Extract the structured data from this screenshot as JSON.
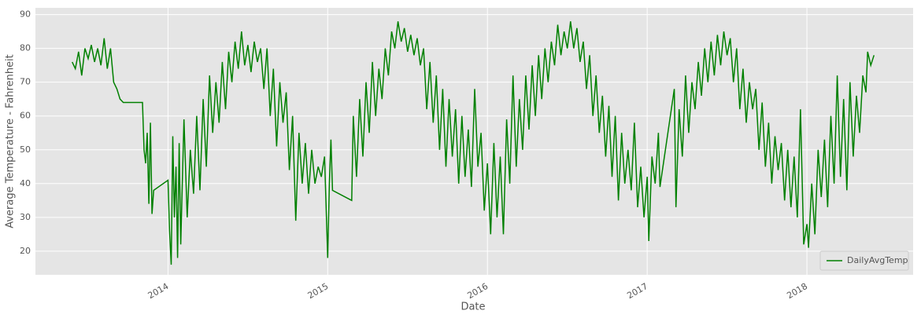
{
  "chart_data": {
    "type": "line",
    "x_label": "Date",
    "y_label": "Average Temperature - Fahrenheit",
    "x": [
      2013.4,
      2013.42,
      2013.44,
      2013.46,
      2013.48,
      2013.5,
      2013.52,
      2013.54,
      2013.56,
      2013.58,
      2013.6,
      2013.62,
      2013.64,
      2013.66,
      2013.68,
      2013.7,
      2013.72,
      2013.84,
      2013.85,
      2013.86,
      2013.87,
      2013.88,
      2013.89,
      2013.9,
      2013.91,
      2014.0,
      2014.01,
      2014.02,
      2014.03,
      2014.04,
      2014.05,
      2014.06,
      2014.07,
      2014.08,
      2014.1,
      2014.12,
      2014.14,
      2014.16,
      2014.18,
      2014.2,
      2014.22,
      2014.24,
      2014.26,
      2014.28,
      2014.3,
      2014.32,
      2014.34,
      2014.36,
      2014.38,
      2014.4,
      2014.42,
      2014.44,
      2014.46,
      2014.48,
      2014.5,
      2014.52,
      2014.54,
      2014.56,
      2014.58,
      2014.6,
      2014.62,
      2014.64,
      2014.66,
      2014.68,
      2014.7,
      2014.72,
      2014.74,
      2014.76,
      2014.78,
      2014.8,
      2014.82,
      2014.84,
      2014.86,
      2014.88,
      2014.9,
      2014.92,
      2014.94,
      2014.96,
      2014.98,
      2015.0,
      2015.01,
      2015.02,
      2015.03,
      2015.15,
      2015.16,
      2015.18,
      2015.2,
      2015.22,
      2015.24,
      2015.26,
      2015.28,
      2015.3,
      2015.32,
      2015.34,
      2015.36,
      2015.38,
      2015.4,
      2015.42,
      2015.44,
      2015.46,
      2015.48,
      2015.5,
      2015.52,
      2015.54,
      2015.56,
      2015.58,
      2015.6,
      2015.62,
      2015.64,
      2015.66,
      2015.68,
      2015.7,
      2015.72,
      2015.74,
      2015.76,
      2015.78,
      2015.8,
      2015.82,
      2015.84,
      2015.86,
      2015.88,
      2015.9,
      2015.92,
      2015.94,
      2015.96,
      2015.98,
      2016.0,
      2016.02,
      2016.04,
      2016.06,
      2016.08,
      2016.1,
      2016.12,
      2016.14,
      2016.16,
      2016.18,
      2016.2,
      2016.22,
      2016.24,
      2016.26,
      2016.28,
      2016.3,
      2016.32,
      2016.34,
      2016.36,
      2016.38,
      2016.4,
      2016.42,
      2016.44,
      2016.46,
      2016.48,
      2016.5,
      2016.52,
      2016.54,
      2016.56,
      2016.58,
      2016.6,
      2016.62,
      2016.64,
      2016.66,
      2016.68,
      2016.7,
      2016.72,
      2016.74,
      2016.76,
      2016.78,
      2016.8,
      2016.82,
      2016.84,
      2016.86,
      2016.88,
      2016.9,
      2016.92,
      2016.94,
      2016.96,
      2016.98,
      2017.0,
      2017.01,
      2017.03,
      2017.05,
      2017.07,
      2017.08,
      2017.17,
      2017.18,
      2017.2,
      2017.22,
      2017.24,
      2017.26,
      2017.28,
      2017.3,
      2017.32,
      2017.34,
      2017.36,
      2017.38,
      2017.4,
      2017.42,
      2017.44,
      2017.46,
      2017.48,
      2017.5,
      2017.52,
      2017.54,
      2017.56,
      2017.58,
      2017.6,
      2017.62,
      2017.64,
      2017.66,
      2017.68,
      2017.7,
      2017.72,
      2017.74,
      2017.76,
      2017.78,
      2017.8,
      2017.82,
      2017.84,
      2017.86,
      2017.88,
      2017.9,
      2017.92,
      2017.94,
      2017.96,
      2017.98,
      2018.0,
      2018.01,
      2018.03,
      2018.05,
      2018.07,
      2018.09,
      2018.11,
      2018.13,
      2018.15,
      2018.17,
      2018.19,
      2018.21,
      2018.23,
      2018.25,
      2018.27,
      2018.29,
      2018.31,
      2018.33,
      2018.35,
      2018.37,
      2018.38,
      2018.4,
      2018.42
    ],
    "series": [
      {
        "name": "DailyAvgTemp",
        "color": "#008000",
        "values": [
          76,
          74,
          79,
          72,
          80,
          77,
          81,
          76,
          80,
          75,
          83,
          74,
          80,
          70,
          68,
          65,
          64,
          64,
          50,
          46,
          55,
          34,
          58,
          31,
          38,
          41,
          26,
          16,
          54,
          30,
          45,
          18,
          52,
          22,
          59,
          30,
          50,
          37,
          60,
          38,
          65,
          45,
          72,
          55,
          70,
          58,
          76,
          62,
          79,
          70,
          82,
          74,
          85,
          75,
          81,
          73,
          82,
          76,
          80,
          68,
          80,
          60,
          74,
          51,
          70,
          58,
          67,
          44,
          60,
          29,
          55,
          40,
          52,
          37,
          50,
          40,
          45,
          42,
          48,
          18,
          40,
          53,
          38,
          35,
          60,
          42,
          65,
          48,
          70,
          55,
          76,
          60,
          74,
          65,
          80,
          72,
          85,
          80,
          88,
          82,
          86,
          79,
          84,
          78,
          83,
          75,
          80,
          62,
          76,
          58,
          72,
          50,
          68,
          45,
          65,
          48,
          62,
          40,
          60,
          42,
          56,
          39,
          68,
          45,
          55,
          32,
          46,
          25,
          52,
          30,
          48,
          25,
          59,
          40,
          72,
          45,
          65,
          50,
          72,
          56,
          75,
          60,
          78,
          65,
          80,
          70,
          82,
          75,
          87,
          78,
          85,
          80,
          88,
          80,
          86,
          76,
          82,
          68,
          78,
          60,
          72,
          55,
          66,
          48,
          63,
          42,
          60,
          35,
          55,
          40,
          50,
          38,
          58,
          33,
          45,
          30,
          42,
          23,
          48,
          40,
          55,
          39,
          68,
          33,
          62,
          48,
          72,
          55,
          70,
          62,
          76,
          66,
          80,
          70,
          82,
          72,
          84,
          75,
          85,
          78,
          83,
          70,
          80,
          62,
          74,
          58,
          70,
          62,
          68,
          50,
          64,
          45,
          58,
          40,
          54,
          44,
          52,
          35,
          50,
          33,
          48,
          30,
          62,
          22,
          28,
          21,
          40,
          25,
          50,
          36,
          53,
          33,
          60,
          40,
          72,
          42,
          65,
          38,
          70,
          48,
          66,
          55,
          72,
          67,
          79,
          75,
          78
        ]
      }
    ],
    "xlim": [
      2013.17,
      2018.665
    ],
    "xticks": [
      2014,
      2015,
      2016,
      2017,
      2018
    ],
    "ylim": [
      13,
      92
    ],
    "yticks": [
      20,
      30,
      40,
      50,
      60,
      70,
      80,
      90
    ],
    "grid": true,
    "legend": "lower right"
  }
}
